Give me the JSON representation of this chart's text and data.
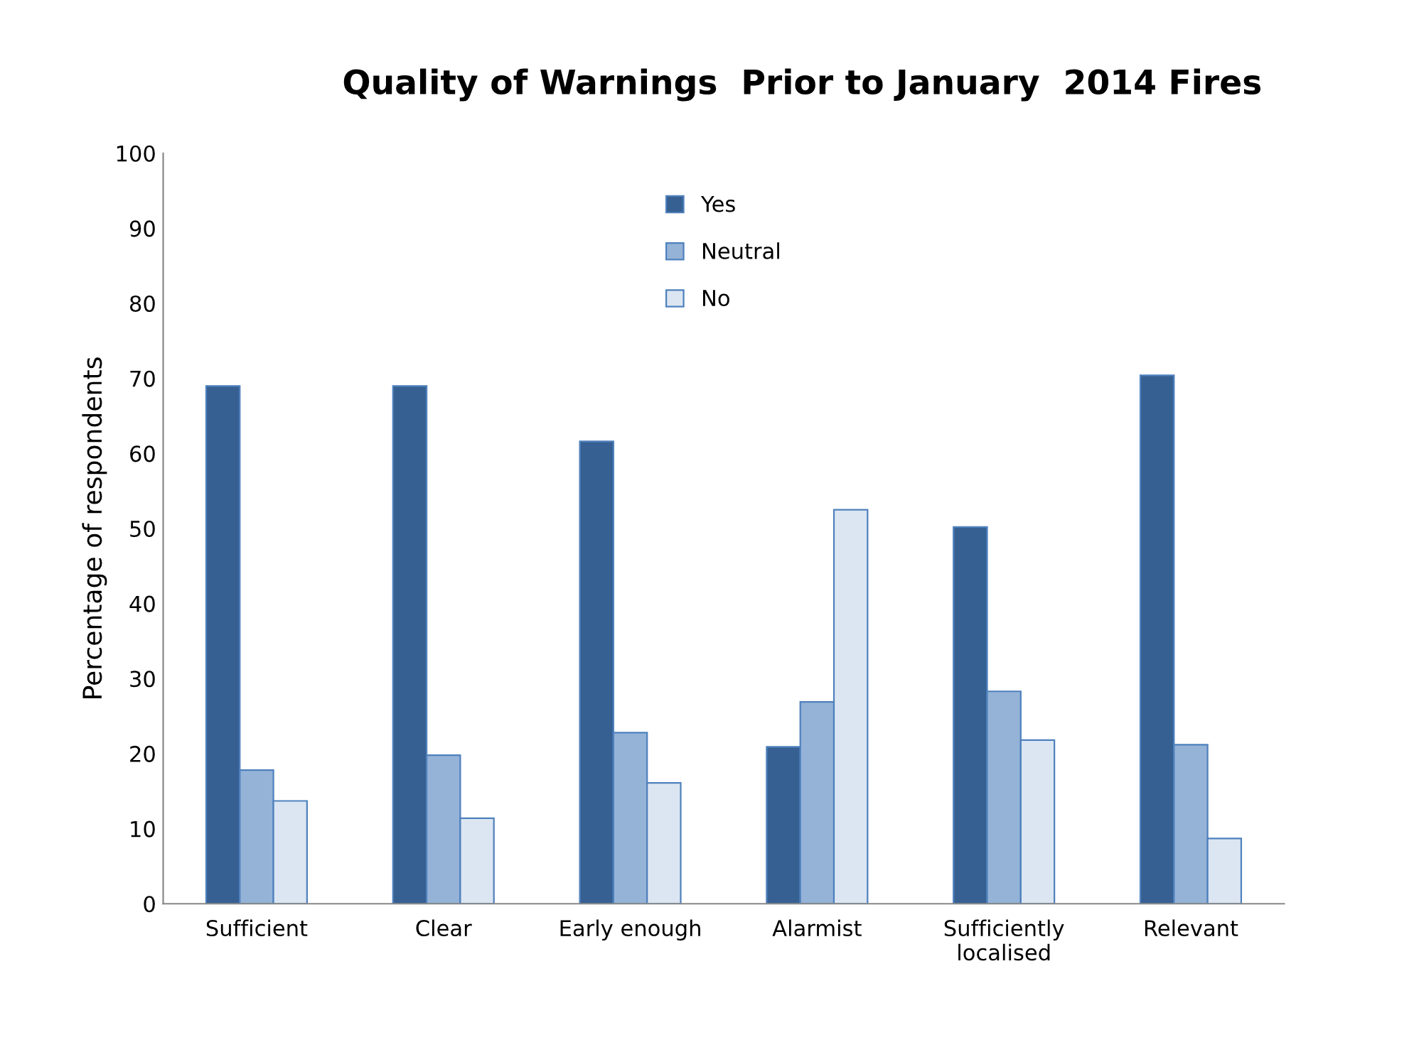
{
  "chart_data": {
    "type": "bar",
    "title": "Quality of Warnings  Prior to January  2014 Fires",
    "ylabel": "Percentage of respondents",
    "categories": [
      "Sufficient",
      "Clear",
      "Early enough",
      "Alarmist",
      "Sufficiently\nlocalised",
      "Relevant"
    ],
    "series": [
      {
        "name": "Yes",
        "color": "#376092",
        "values": [
          69,
          69,
          61.6,
          20.9,
          50.2,
          70.4
        ]
      },
      {
        "name": "Neutral",
        "color": "#95b3d7",
        "values": [
          17.8,
          19.8,
          22.8,
          26.9,
          28.3,
          21.2
        ]
      },
      {
        "name": "No",
        "color": "#dce6f2",
        "values": [
          13.7,
          11.4,
          16.1,
          52.5,
          21.8,
          8.7
        ]
      }
    ],
    "ylim": [
      0,
      100
    ],
    "yticks": [
      0,
      10,
      20,
      30,
      40,
      50,
      60,
      70,
      80,
      90,
      100
    ],
    "grid": false,
    "legend": "top"
  }
}
